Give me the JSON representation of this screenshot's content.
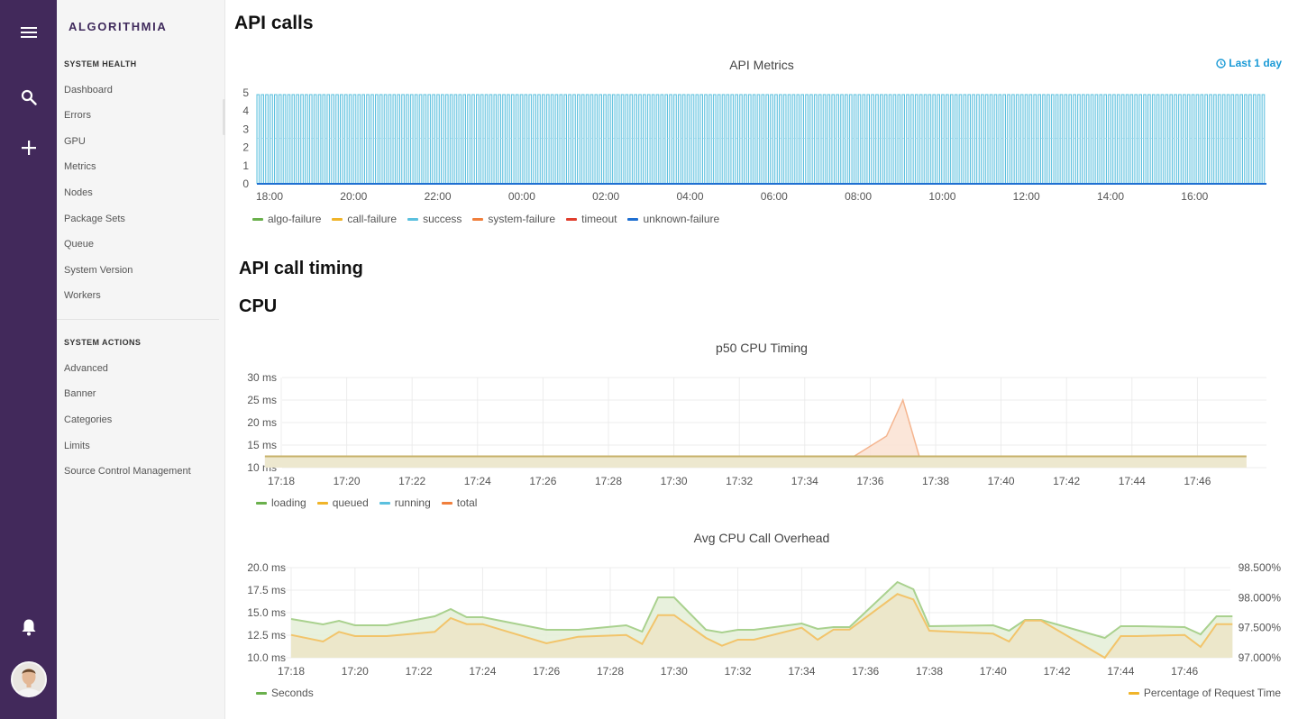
{
  "brand": "ALGORITHMIA",
  "sidebar": {
    "system_health_title": "SYSTEM HEALTH",
    "health_items": [
      "Dashboard",
      "Errors",
      "GPU",
      "Metrics",
      "Nodes",
      "Package Sets",
      "Queue",
      "System Version",
      "Workers"
    ],
    "system_actions_title": "SYSTEM ACTIONS",
    "action_items": [
      "Advanced",
      "Banner",
      "Categories",
      "Limits",
      "Source Control Management"
    ]
  },
  "rail_icons": [
    "menu-icon",
    "search-icon",
    "plus-icon",
    "bell-icon"
  ],
  "main": {
    "api_calls_heading": "API calls",
    "time_range": "Last 1 day",
    "api_call_timing_heading": "API call timing",
    "cpu_heading": "CPU"
  },
  "colors": {
    "rail": "#42295b",
    "accent": "#1a9ad6",
    "loading": "#6ab04c",
    "queued": "#f0b429",
    "success": "#5bc0de",
    "system_failure": "#f07f3c",
    "timeout": "#e03e2d",
    "unknown_failure": "#1f6fd1"
  },
  "chart_data": [
    {
      "type": "line",
      "title": "API Metrics",
      "x_ticks": [
        "18:00",
        "20:00",
        "22:00",
        "00:00",
        "02:00",
        "04:00",
        "06:00",
        "08:00",
        "10:00",
        "12:00",
        "14:00",
        "16:00"
      ],
      "y_ticks": [
        0,
        1,
        2,
        3,
        4,
        5
      ],
      "ylim": [
        0,
        5
      ],
      "series": [
        {
          "name": "algo-failure",
          "color": "#6ab04c",
          "values": [
            0
          ]
        },
        {
          "name": "call-failure",
          "color": "#f0b429",
          "values": [
            0
          ]
        },
        {
          "name": "success",
          "color": "#5bc0de",
          "pattern": "oscillating",
          "values": [
            0,
            4.9,
            4.9,
            0
          ]
        },
        {
          "name": "system-failure",
          "color": "#f07f3c",
          "values": [
            0
          ]
        },
        {
          "name": "timeout",
          "color": "#e03e2d",
          "values": [
            0
          ]
        },
        {
          "name": "unknown-failure",
          "color": "#1f6fd1",
          "values": [
            0
          ]
        }
      ],
      "legend": "bottom-left"
    },
    {
      "type": "area",
      "title": "p50 CPU Timing",
      "x_ticks": [
        "17:18",
        "17:20",
        "17:22",
        "17:24",
        "17:26",
        "17:28",
        "17:30",
        "17:32",
        "17:34",
        "17:36",
        "17:38",
        "17:40",
        "17:42",
        "17:44",
        "17:46"
      ],
      "y_ticks": [
        "10 ms",
        "15 ms",
        "20 ms",
        "25 ms",
        "30 ms"
      ],
      "ylim": [
        10,
        30
      ],
      "x_minutes": [
        17.5,
        35.5,
        36.5,
        37.0,
        37.5,
        47.5
      ],
      "series": [
        {
          "name": "loading",
          "color": "#6ab04c",
          "values": [
            12.5,
            12.5,
            12.5,
            12.5,
            12.5,
            12.5
          ]
        },
        {
          "name": "queued",
          "color": "#f0b429",
          "values": [
            12.5,
            12.5,
            12.5,
            12.5,
            12.5,
            12.5
          ]
        },
        {
          "name": "running",
          "color": "#5bc0de",
          "values": [
            12.5,
            12.5,
            12.5,
            12.5,
            12.5,
            12.5
          ]
        },
        {
          "name": "total",
          "color": "#f07f3c",
          "values": [
            12.5,
            12.5,
            17,
            25,
            12.5,
            12.5
          ]
        }
      ],
      "legend": "bottom-left"
    },
    {
      "type": "area",
      "title": "Avg CPU Call Overhead",
      "x_ticks": [
        "17:18",
        "17:20",
        "17:22",
        "17:24",
        "17:26",
        "17:28",
        "17:30",
        "17:32",
        "17:34",
        "17:36",
        "17:38",
        "17:40",
        "17:42",
        "17:44",
        "17:46"
      ],
      "y_ticks": [
        "10.0 ms",
        "12.5 ms",
        "15.0 ms",
        "17.5 ms",
        "20.0 ms"
      ],
      "ylim": [
        10,
        20
      ],
      "y2_ticks": [
        "97.000%",
        "97.500%",
        "98.000%",
        "98.500%"
      ],
      "y2lim": [
        97.0,
        98.5
      ],
      "x_minutes": [
        18,
        19,
        19.5,
        20,
        21,
        22.5,
        23,
        23.5,
        24,
        26,
        27,
        28.5,
        29,
        29.5,
        30,
        31,
        31.5,
        32,
        32.5,
        34,
        34.5,
        35,
        35.5,
        37,
        37.5,
        38,
        40,
        40.5,
        41,
        41.5,
        43.5,
        44,
        44.5,
        46,
        46.5,
        47,
        47.5
      ],
      "series": [
        {
          "name": "Seconds",
          "color": "#6ab04c",
          "axis": "left",
          "values": [
            14.3,
            13.7,
            14.1,
            13.6,
            13.6,
            14.6,
            15.4,
            14.5,
            14.5,
            13.1,
            13.1,
            13.6,
            12.9,
            16.7,
            16.7,
            13.1,
            12.8,
            13.1,
            13.1,
            13.8,
            13.2,
            13.4,
            13.4,
            18.4,
            17.6,
            13.5,
            13.6,
            13.0,
            14.2,
            14.2,
            12.2,
            13.5,
            13.5,
            13.4,
            12.6,
            14.6,
            14.6
          ]
        },
        {
          "name": "Percentage of Request Time",
          "color": "#f0b429",
          "axis": "right",
          "values": [
            97.38,
            97.27,
            97.43,
            97.36,
            97.36,
            97.43,
            97.66,
            97.56,
            97.56,
            97.24,
            97.35,
            97.38,
            97.23,
            97.71,
            97.71,
            97.33,
            97.2,
            97.3,
            97.3,
            97.5,
            97.3,
            97.47,
            97.47,
            98.06,
            97.97,
            97.45,
            97.4,
            97.27,
            97.62,
            97.62,
            97.0,
            97.36,
            97.36,
            97.38,
            97.18,
            97.56,
            97.56
          ]
        }
      ],
      "legend": "bottom"
    }
  ]
}
